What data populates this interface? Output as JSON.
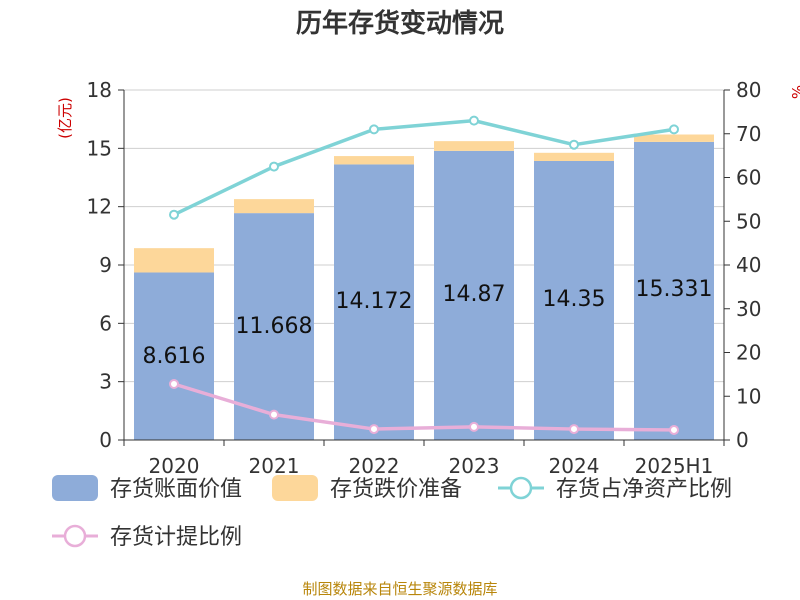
{
  "chart_data": {
    "type": "bar",
    "title": "历年存货变动情况",
    "categories": [
      "2020",
      "2021",
      "2022",
      "2023",
      "2024",
      "2025H1"
    ],
    "y_left": {
      "label": "(亿元)",
      "lim": [
        0,
        18
      ],
      "ticks": [
        0,
        3,
        6,
        9,
        12,
        15,
        18
      ]
    },
    "y_right": {
      "label": "%",
      "lim": [
        0,
        80
      ],
      "ticks": [
        0,
        10,
        20,
        30,
        40,
        50,
        60,
        70,
        80
      ]
    },
    "series": [
      {
        "name": "存货账面价值",
        "kind": "bar-stack",
        "axis": "left",
        "color": "#8eacd9",
        "values": [
          8.616,
          11.668,
          14.172,
          14.87,
          14.35,
          15.331
        ],
        "labels": [
          "8.616",
          "11.668",
          "14.172",
          "14.87",
          "14.35",
          "15.331"
        ]
      },
      {
        "name": "存货跌价准备",
        "kind": "bar-stack",
        "axis": "left",
        "color": "#fdd79a",
        "values": [
          1.25,
          0.72,
          0.43,
          0.5,
          0.42,
          0.38
        ]
      },
      {
        "name": "存货占净资产比例",
        "kind": "line",
        "axis": "right",
        "color": "#7fd3d6",
        "values": [
          51.5,
          62.5,
          71.0,
          73.0,
          67.5,
          71.0
        ]
      },
      {
        "name": "存货计提比例",
        "kind": "line",
        "axis": "right",
        "color": "#e8aed8",
        "values": [
          12.8,
          5.8,
          2.5,
          3.0,
          2.5,
          2.3
        ]
      }
    ],
    "grid": true,
    "legend": "bottom"
  },
  "footer": "制图数据来自恒生聚源数据库"
}
